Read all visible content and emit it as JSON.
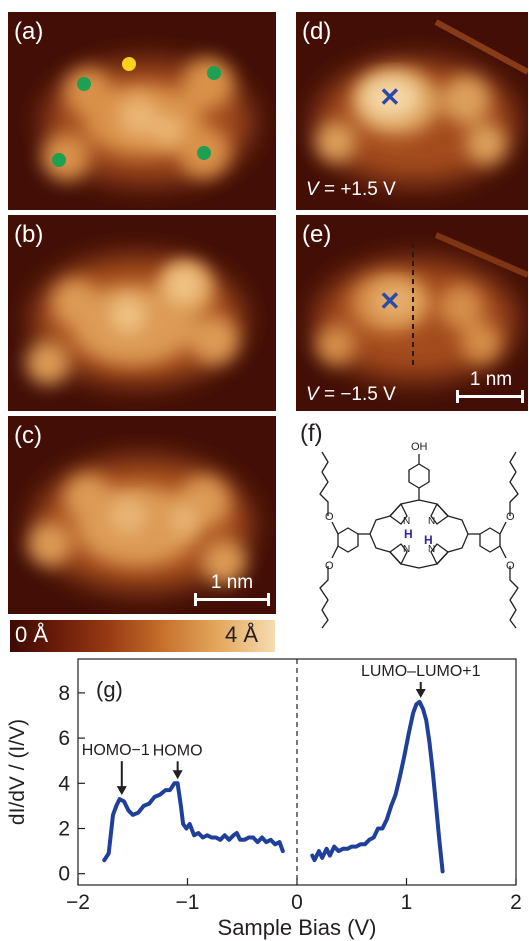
{
  "panels": {
    "a": {
      "label": "(a)"
    },
    "b": {
      "label": "(b)"
    },
    "c": {
      "label": "(c)",
      "scale_bar": "1 nm"
    },
    "d": {
      "label": "(d)",
      "voltage_symbol": "V",
      "voltage_value": " = +1.5 V"
    },
    "e": {
      "label": "(e)",
      "voltage_symbol": "V",
      "voltage_value": " = −1.5 V",
      "scale_bar": "1 nm"
    },
    "f": {
      "label": "(f)",
      "atoms": {
        "oh": "OH",
        "o": "O",
        "n": "N",
        "h": "H"
      }
    }
  },
  "colorbar": {
    "min_label": "0 Å",
    "max_label": "4 Å"
  },
  "colors": {
    "marker_green": "#1ea052",
    "marker_yellow": "#f7d11e",
    "cross": "#2a4aa8",
    "curve": "#1f3f9a",
    "nh_h": "#2a2aa0"
  },
  "chart_data": {
    "type": "line",
    "panel_label": "(g)",
    "xlabel": "Sample Bias (V)",
    "ylabel": "dI/dV / (I/V)",
    "xlim": [
      -2,
      2
    ],
    "ylim": [
      -0.5,
      9.5
    ],
    "xticks": [
      -2,
      -1,
      0,
      1,
      2
    ],
    "xtick_labels": [
      "−2",
      "−1",
      "0",
      "1",
      "2"
    ],
    "yticks": [
      0,
      2,
      4,
      6,
      8
    ],
    "ytick_labels": [
      "0",
      "2",
      "4",
      "6",
      "8"
    ],
    "zero_line": 0,
    "annotations": [
      {
        "text": "HOMO−1",
        "x": -1.6,
        "y": 3.3
      },
      {
        "text": "HOMO",
        "x": -1.09,
        "y": 4.0
      },
      {
        "text": "LUMO–LUMO+1",
        "x": 1.13,
        "y": 7.6
      }
    ],
    "series": [
      {
        "x": [
          -1.76,
          -1.72,
          -1.68,
          -1.65,
          -1.62,
          -1.58,
          -1.54,
          -1.5,
          -1.45,
          -1.4,
          -1.35,
          -1.3,
          -1.25,
          -1.2,
          -1.16,
          -1.12,
          -1.09,
          -1.06,
          -1.04,
          -1.01,
          -0.98,
          -0.94,
          -0.9,
          -0.86,
          -0.82,
          -0.78,
          -0.74,
          -0.7,
          -0.66,
          -0.62,
          -0.58,
          -0.55,
          -0.52,
          -0.48,
          -0.44,
          -0.4,
          -0.36,
          -0.32,
          -0.28,
          -0.24,
          -0.2,
          -0.16,
          -0.13
        ],
        "values": [
          0.6,
          0.9,
          2.6,
          3.0,
          3.3,
          3.2,
          2.8,
          2.6,
          2.7,
          3.0,
          3.1,
          3.4,
          3.5,
          3.7,
          3.7,
          4.0,
          4.0,
          3.0,
          2.2,
          2.0,
          2.2,
          1.7,
          1.8,
          1.6,
          1.7,
          1.6,
          1.6,
          1.5,
          1.7,
          1.5,
          1.7,
          1.8,
          1.5,
          1.5,
          1.6,
          1.6,
          1.4,
          1.6,
          1.4,
          1.5,
          1.3,
          1.4,
          1.0
        ]
      },
      {
        "x": [
          0.14,
          0.16,
          0.2,
          0.23,
          0.27,
          0.3,
          0.34,
          0.38,
          0.42,
          0.46,
          0.5,
          0.54,
          0.58,
          0.62,
          0.66,
          0.7,
          0.74,
          0.78,
          0.82,
          0.86,
          0.9,
          0.94,
          0.98,
          1.02,
          1.06,
          1.09,
          1.12,
          1.15,
          1.18,
          1.21,
          1.24,
          1.27,
          1.3,
          1.33
        ],
        "values": [
          0.8,
          0.6,
          1.0,
          0.7,
          1.1,
          0.8,
          1.2,
          1.0,
          1.1,
          1.1,
          1.2,
          1.2,
          1.3,
          1.3,
          1.5,
          1.6,
          2.0,
          2.0,
          2.4,
          3.0,
          3.5,
          4.3,
          5.2,
          6.2,
          7.1,
          7.5,
          7.6,
          7.3,
          6.8,
          5.8,
          4.5,
          3.0,
          1.5,
          0.1
        ]
      }
    ]
  }
}
